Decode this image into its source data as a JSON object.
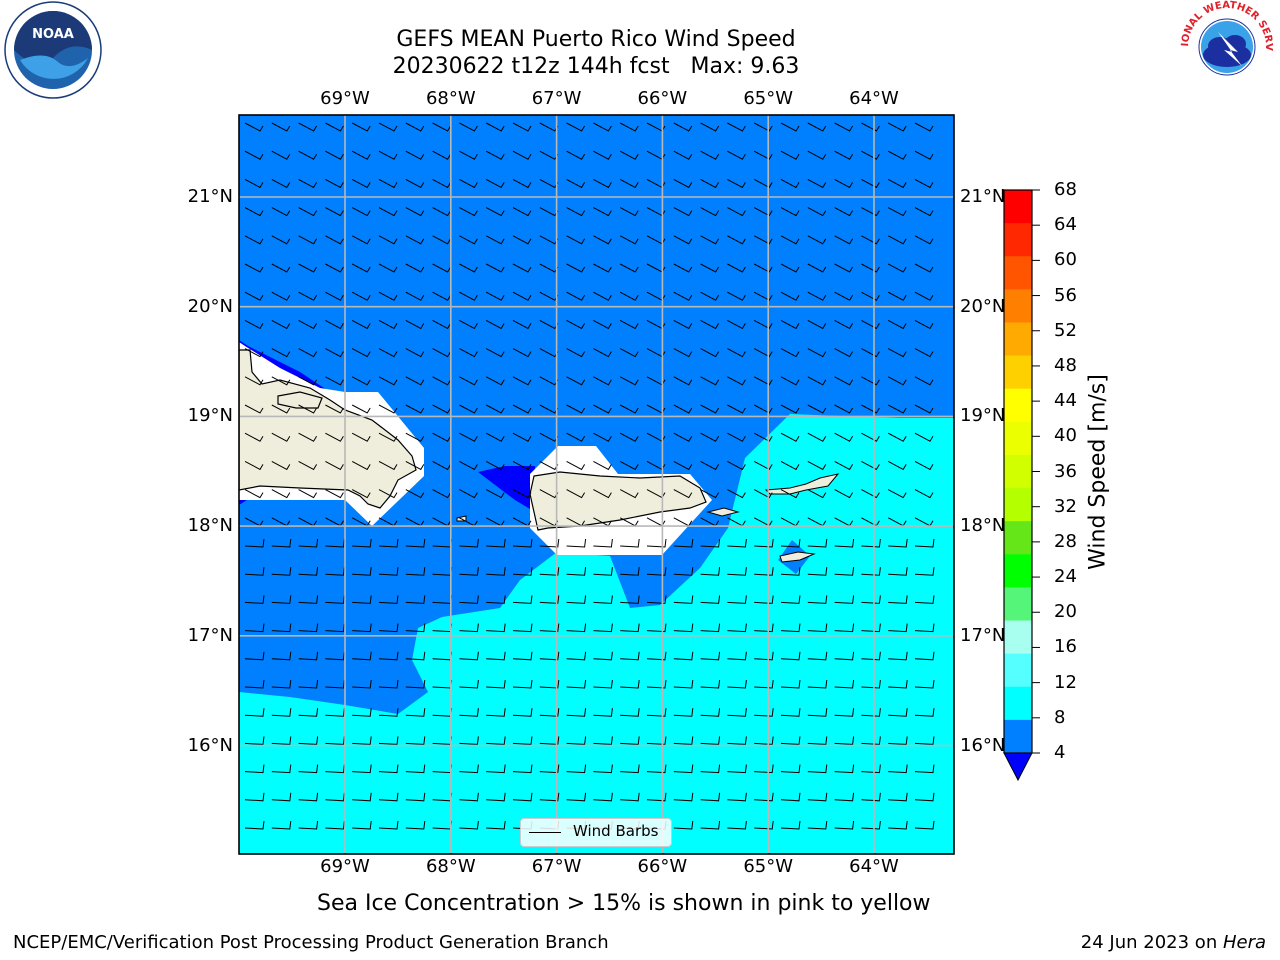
{
  "title": {
    "line1": "GEFS MEAN Puerto Rico Wind Speed",
    "line2": "20230622 t12z 144h fcst   Max: 9.63"
  },
  "map": {
    "lon_labels": [
      "69°W",
      "68°W",
      "67°W",
      "66°W",
      "65°W",
      "64°W"
    ],
    "lat_labels": [
      "21°N",
      "20°N",
      "19°N",
      "18°N",
      "17°N",
      "16°N"
    ],
    "land_color": "#efeedc",
    "fill_colors": {
      "band_4_8": "#0080ff",
      "band_8_12": "#00ffff",
      "below_4": "#0000ff",
      "no_data": "#ffffff"
    }
  },
  "legend": {
    "label": "Wind Barbs"
  },
  "colorbar": {
    "title": "Wind Speed [m/s]",
    "ticks": [
      "68",
      "64",
      "60",
      "56",
      "52",
      "48",
      "44",
      "40",
      "36",
      "32",
      "28",
      "24",
      "20",
      "16",
      "12",
      "8",
      "4"
    ],
    "colors": [
      "#ff0000",
      "#ff2800",
      "#ff5500",
      "#ff8000",
      "#ffaa00",
      "#ffd000",
      "#ffff00",
      "#ebff00",
      "#d2ff00",
      "#b4ff00",
      "#64e619",
      "#00ff00",
      "#55f57a",
      "#a8fff0",
      "#55ffff",
      "#00ffff",
      "#0080ff"
    ],
    "underflow_color": "#0000ff"
  },
  "subtitle": "Sea Ice Concentration > 15% is shown in pink to yellow",
  "footer": {
    "left": "NCEP/EMC/Verification Post Processing Product Generation Branch",
    "right_date": "24 Jun 2023 on ",
    "right_host": "Hera"
  },
  "logos": {
    "noaa_text": "NOAA",
    "nws_text": "NATIONAL WEATHER SERVICE"
  }
}
